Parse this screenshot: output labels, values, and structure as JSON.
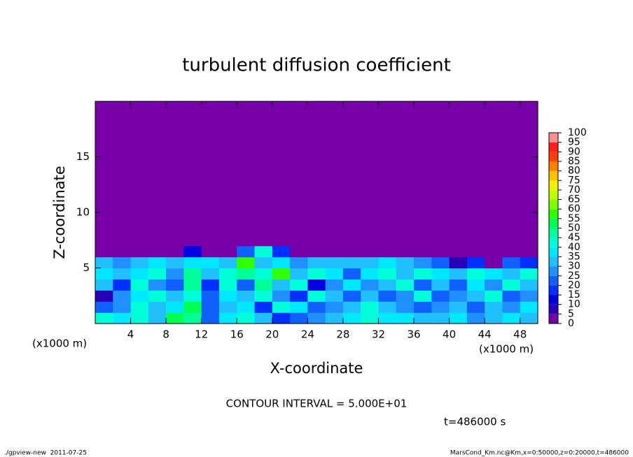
{
  "chart_data": {
    "type": "heatmap",
    "title": "turbulent diffusion coefficient",
    "x_label": "X-coordinate",
    "y_label": "Z-coordinate",
    "x_unit_label": "(x1000 m)",
    "xlim": [
      0,
      50
    ],
    "ylim": [
      0,
      20
    ],
    "xticks": [
      4,
      8,
      12,
      16,
      20,
      24,
      28,
      32,
      36,
      40,
      44,
      48
    ],
    "yticks": [
      5,
      10,
      15
    ],
    "levels": [
      0,
      5,
      10,
      15,
      20,
      25,
      30,
      35,
      40,
      45,
      50,
      55,
      60,
      65,
      70,
      75,
      80,
      85,
      90,
      95,
      100
    ],
    "colors": [
      "#7800a8",
      "#2800b8",
      "#0000e0",
      "#0030ff",
      "#1060ff",
      "#2090ff",
      "#20c0ff",
      "#00e8ff",
      "#00ffd8",
      "#00ff98",
      "#00ff50",
      "#30ff00",
      "#80ff00",
      "#c0ff00",
      "#f0f000",
      "#ffc000",
      "#ff8000",
      "#ff4000",
      "#ff2020",
      "#ff9090"
    ],
    "z": [
      [
        40,
        35,
        40,
        30,
        50,
        45,
        20,
        35,
        40,
        30,
        15,
        20,
        25,
        30,
        35,
        40,
        35,
        35,
        30,
        30,
        35,
        25,
        30,
        35,
        30
      ],
      [
        20,
        25,
        40,
        30,
        35,
        50,
        20,
        30,
        35,
        15,
        40,
        35,
        20,
        25,
        30,
        40,
        30,
        25,
        20,
        25,
        30,
        20,
        30,
        25,
        35
      ],
      [
        5,
        25,
        35,
        40,
        30,
        40,
        20,
        35,
        30,
        40,
        25,
        15,
        40,
        30,
        20,
        30,
        20,
        25,
        40,
        20,
        25,
        30,
        40,
        20,
        25
      ],
      [
        30,
        15,
        40,
        25,
        20,
        45,
        15,
        40,
        20,
        45,
        30,
        40,
        10,
        25,
        35,
        25,
        30,
        40,
        20,
        30,
        20,
        35,
        25,
        40,
        30
      ],
      [
        35,
        30,
        35,
        40,
        25,
        45,
        30,
        40,
        45,
        40,
        55,
        30,
        40,
        35,
        20,
        35,
        40,
        30,
        40,
        35,
        30,
        40,
        35,
        30,
        40
      ],
      [
        30,
        25,
        30,
        35,
        30,
        35,
        35,
        30,
        55,
        30,
        35,
        25,
        30,
        30,
        30,
        30,
        35,
        30,
        25,
        20,
        5,
        15,
        0,
        20,
        15
      ],
      [
        0,
        0,
        0,
        0,
        0,
        10,
        0,
        0,
        20,
        40,
        15,
        0,
        0,
        0,
        0,
        0,
        0,
        0,
        0,
        0,
        0,
        0,
        0,
        0,
        0
      ],
      [
        0,
        0,
        0,
        0,
        0,
        0,
        0,
        0,
        0,
        0,
        0,
        0,
        0,
        0,
        0,
        0,
        0,
        0,
        0,
        0,
        0,
        0,
        0,
        0,
        0
      ],
      [
        0,
        0,
        0,
        0,
        0,
        0,
        0,
        0,
        0,
        0,
        0,
        0,
        0,
        0,
        0,
        0,
        0,
        0,
        0,
        0,
        0,
        0,
        0,
        0,
        0
      ],
      [
        0,
        0,
        0,
        0,
        0,
        0,
        0,
        0,
        0,
        0,
        0,
        0,
        0,
        0,
        0,
        0,
        0,
        0,
        0,
        0,
        0,
        0,
        0,
        0,
        0
      ],
      [
        0,
        0,
        0,
        0,
        0,
        0,
        0,
        0,
        0,
        0,
        0,
        0,
        0,
        0,
        0,
        0,
        0,
        0,
        0,
        0,
        0,
        0,
        0,
        0,
        0
      ],
      [
        0,
        0,
        0,
        0,
        0,
        0,
        0,
        0,
        0,
        0,
        0,
        0,
        0,
        0,
        0,
        0,
        0,
        0,
        0,
        0,
        0,
        0,
        0,
        0,
        0
      ],
      [
        0,
        0,
        0,
        0,
        0,
        0,
        0,
        0,
        0,
        0,
        0,
        0,
        0,
        0,
        0,
        0,
        0,
        0,
        0,
        0,
        0,
        0,
        0,
        0,
        0
      ],
      [
        0,
        0,
        0,
        0,
        0,
        0,
        0,
        0,
        0,
        0,
        0,
        0,
        0,
        0,
        0,
        0,
        0,
        0,
        0,
        0,
        0,
        0,
        0,
        0,
        0
      ],
      [
        0,
        0,
        0,
        0,
        0,
        0,
        0,
        0,
        0,
        0,
        0,
        0,
        0,
        0,
        0,
        0,
        0,
        0,
        0,
        0,
        0,
        0,
        0,
        0,
        0
      ],
      [
        0,
        0,
        0,
        0,
        0,
        0,
        0,
        0,
        0,
        0,
        0,
        0,
        0,
        0,
        0,
        0,
        0,
        0,
        0,
        0,
        0,
        0,
        0,
        0,
        0
      ],
      [
        0,
        0,
        0,
        0,
        0,
        0,
        0,
        0,
        0,
        0,
        0,
        0,
        0,
        0,
        0,
        0,
        0,
        0,
        0,
        0,
        0,
        0,
        0,
        0,
        0
      ],
      [
        0,
        0,
        0,
        0,
        0,
        0,
        0,
        0,
        0,
        0,
        0,
        0,
        0,
        0,
        0,
        0,
        0,
        0,
        0,
        0,
        0,
        0,
        0,
        0,
        0
      ],
      [
        0,
        0,
        0,
        0,
        0,
        0,
        0,
        0,
        0,
        0,
        0,
        0,
        0,
        0,
        0,
        0,
        0,
        0,
        0,
        0,
        0,
        0,
        0,
        0,
        0
      ],
      [
        0,
        0,
        0,
        0,
        0,
        0,
        0,
        0,
        0,
        0,
        0,
        0,
        0,
        0,
        0,
        0,
        0,
        0,
        0,
        0,
        0,
        0,
        0,
        0,
        0
      ]
    ],
    "contour_note": "CONTOUR INTERVAL = 5.000E+01",
    "time_label": "t=486000 s",
    "footer_left": "./gpview-new  2011-07-25",
    "footer_right": "MarsCond_Km.nc@Km,x=0:50000,z=0:20000,t=486000"
  }
}
